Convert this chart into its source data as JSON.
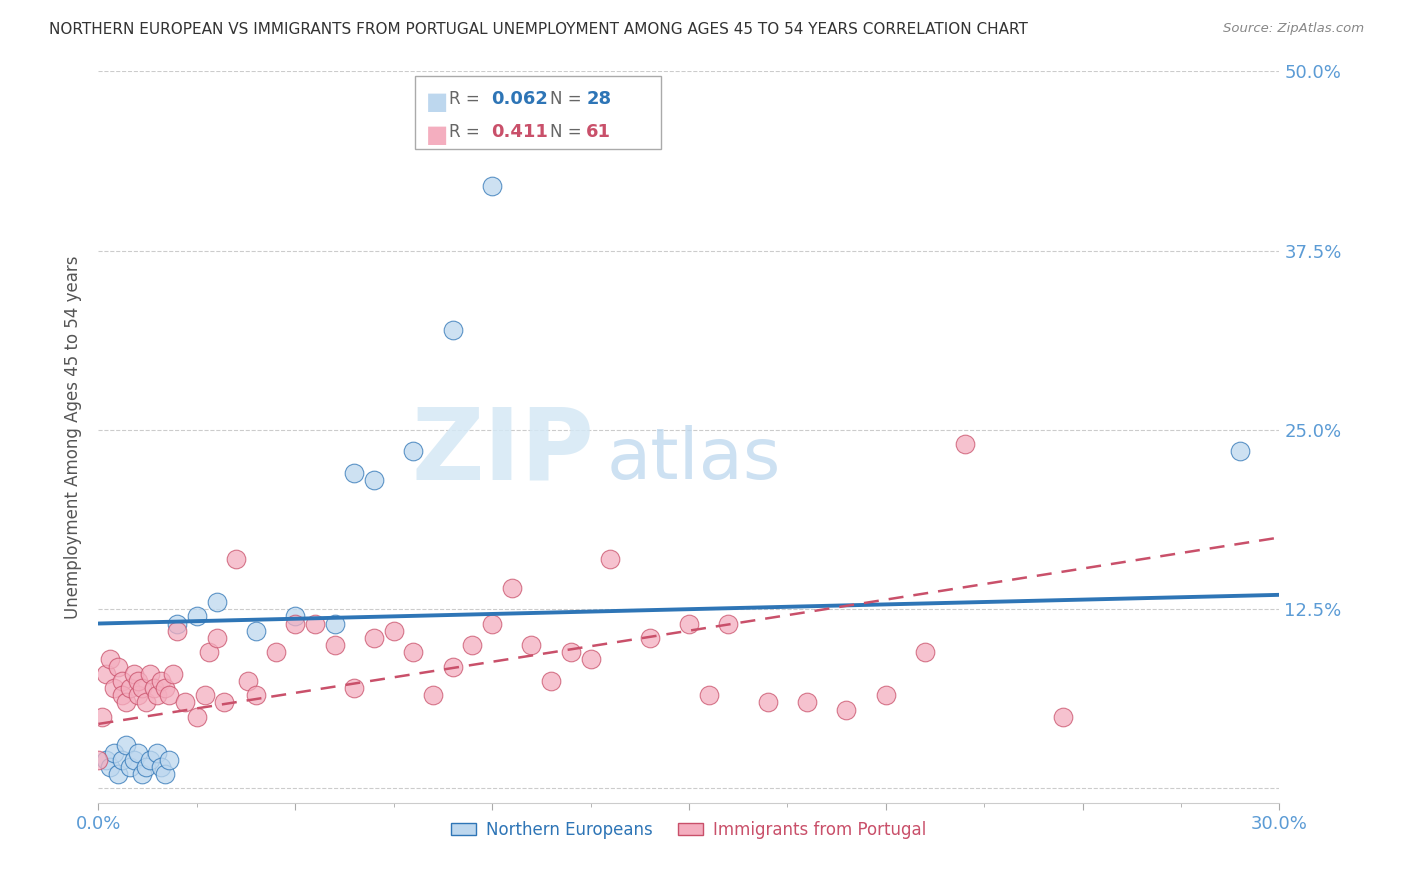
{
  "title": "NORTHERN EUROPEAN VS IMMIGRANTS FROM PORTUGAL UNEMPLOYMENT AMONG AGES 45 TO 54 YEARS CORRELATION CHART",
  "source": "Source: ZipAtlas.com",
  "ylabel": "Unemployment Among Ages 45 to 54 years",
  "xlim": [
    0.0,
    0.3
  ],
  "ylim": [
    -0.01,
    0.5
  ],
  "xticks": [
    0.0,
    0.05,
    0.1,
    0.15,
    0.2,
    0.25,
    0.3
  ],
  "xticklabels": [
    "0.0%",
    "",
    "",
    "",
    "",
    "",
    "30.0%"
  ],
  "yticks": [
    0.0,
    0.125,
    0.25,
    0.375,
    0.5
  ],
  "yticklabels": [
    "",
    "12.5%",
    "25.0%",
    "37.5%",
    "50.0%"
  ],
  "blue_fill_color": "#BDD7EE",
  "blue_edge_color": "#2E75B6",
  "pink_fill_color": "#F4AEBF",
  "pink_edge_color": "#C9506A",
  "blue_line_color": "#2E75B6",
  "pink_line_color": "#C9506A",
  "tick_color": "#5B9BD5",
  "blue_R": "0.062",
  "blue_N": "28",
  "pink_R": "0.411",
  "pink_N": "61",
  "watermark_zip": "ZIP",
  "watermark_atlas": "atlas",
  "legend_label_blue": "Northern Europeans",
  "legend_label_pink": "Immigrants from Portugal",
  "blue_trend_x0": 0.0,
  "blue_trend_y0": 0.115,
  "blue_trend_x1": 0.3,
  "blue_trend_y1": 0.135,
  "pink_trend_x0": 0.0,
  "pink_trend_y0": 0.045,
  "pink_trend_x1": 0.3,
  "pink_trend_y1": 0.175,
  "blue_scatter_x": [
    0.002,
    0.003,
    0.004,
    0.005,
    0.006,
    0.007,
    0.008,
    0.009,
    0.01,
    0.011,
    0.012,
    0.013,
    0.015,
    0.016,
    0.017,
    0.018,
    0.02,
    0.025,
    0.03,
    0.04,
    0.05,
    0.06,
    0.065,
    0.07,
    0.08,
    0.09,
    0.1,
    0.29
  ],
  "blue_scatter_y": [
    0.02,
    0.015,
    0.025,
    0.01,
    0.02,
    0.03,
    0.015,
    0.02,
    0.025,
    0.01,
    0.015,
    0.02,
    0.025,
    0.015,
    0.01,
    0.02,
    0.115,
    0.12,
    0.13,
    0.11,
    0.12,
    0.115,
    0.22,
    0.215,
    0.235,
    0.32,
    0.42,
    0.235
  ],
  "pink_scatter_x": [
    0.0,
    0.001,
    0.002,
    0.003,
    0.004,
    0.005,
    0.006,
    0.006,
    0.007,
    0.008,
    0.009,
    0.01,
    0.01,
    0.011,
    0.012,
    0.013,
    0.014,
    0.015,
    0.016,
    0.017,
    0.018,
    0.019,
    0.02,
    0.022,
    0.025,
    0.027,
    0.028,
    0.03,
    0.032,
    0.035,
    0.038,
    0.04,
    0.045,
    0.05,
    0.055,
    0.06,
    0.065,
    0.07,
    0.075,
    0.08,
    0.085,
    0.09,
    0.095,
    0.1,
    0.105,
    0.11,
    0.115,
    0.12,
    0.125,
    0.13,
    0.14,
    0.15,
    0.155,
    0.16,
    0.17,
    0.18,
    0.19,
    0.2,
    0.21,
    0.22,
    0.245
  ],
  "pink_scatter_y": [
    0.02,
    0.05,
    0.08,
    0.09,
    0.07,
    0.085,
    0.075,
    0.065,
    0.06,
    0.07,
    0.08,
    0.065,
    0.075,
    0.07,
    0.06,
    0.08,
    0.07,
    0.065,
    0.075,
    0.07,
    0.065,
    0.08,
    0.11,
    0.06,
    0.05,
    0.065,
    0.095,
    0.105,
    0.06,
    0.16,
    0.075,
    0.065,
    0.095,
    0.115,
    0.115,
    0.1,
    0.07,
    0.105,
    0.11,
    0.095,
    0.065,
    0.085,
    0.1,
    0.115,
    0.14,
    0.1,
    0.075,
    0.095,
    0.09,
    0.16,
    0.105,
    0.115,
    0.065,
    0.115,
    0.06,
    0.06,
    0.055,
    0.065,
    0.095,
    0.24,
    0.05
  ]
}
